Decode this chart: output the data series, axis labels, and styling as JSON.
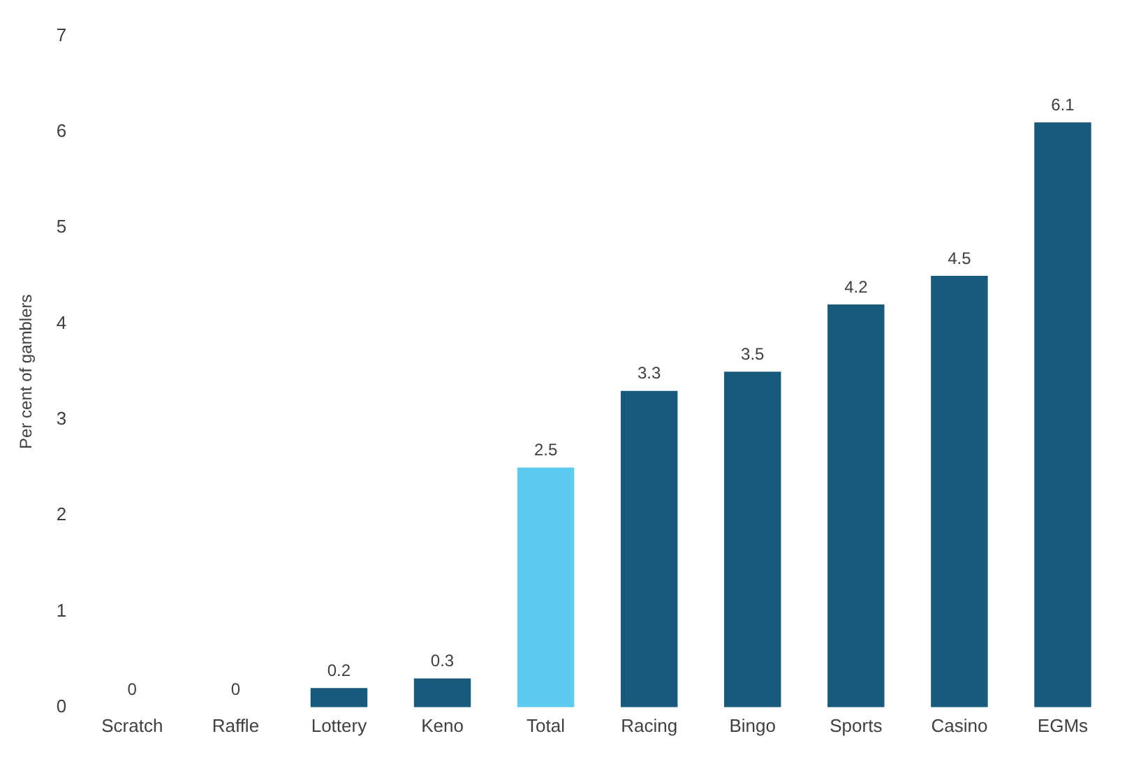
{
  "chart_data": {
    "type": "bar",
    "ylabel": "Per cent of gamblers",
    "categories": [
      "Scratch",
      "Raffle",
      "Lottery",
      "Keno",
      "Total",
      "Racing",
      "Bingo",
      "Sports",
      "Casino",
      "EGMs"
    ],
    "values": [
      0,
      0,
      0.2,
      0.3,
      2.5,
      3.3,
      3.5,
      4.2,
      4.5,
      6.1
    ],
    "colors": [
      "#175a7c",
      "#175a7c",
      "#175a7c",
      "#175a7c",
      "#5ccbf0",
      "#175a7c",
      "#175a7c",
      "#175a7c",
      "#175a7c",
      "#175a7c"
    ],
    "ylim": [
      0,
      7
    ],
    "yticks": [
      0,
      1,
      2,
      3,
      4,
      5,
      6,
      7
    ],
    "grid": false,
    "legend": false,
    "data_labels": true
  }
}
